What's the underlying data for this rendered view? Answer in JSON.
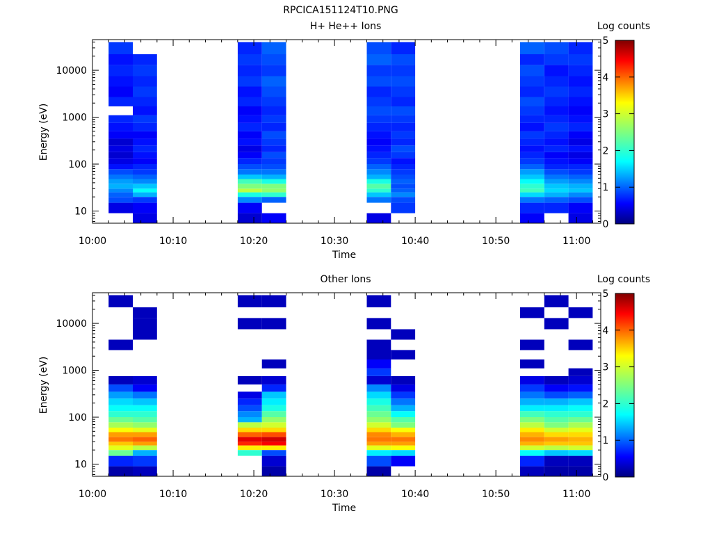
{
  "figure_title": "RPCICA151124T10.PNG",
  "colors": {
    "colormap": [
      "#00007f",
      "#0000ff",
      "#007fff",
      "#00ffff",
      "#7fff7f",
      "#ffff00",
      "#ff7f00",
      "#ff0000",
      "#7f0000"
    ],
    "background": "#ffffff",
    "missing": "#ffffff"
  },
  "chart_data": [
    {
      "type": "heatmap",
      "title": "H+ He++ Ions",
      "xlabel": "Time",
      "ylabel": "Energy (eV)",
      "y_scale": "log",
      "ylim": [
        5.5,
        45000
      ],
      "xlim": [
        "10:00",
        "11:03"
      ],
      "x_ticks": [
        "10:00",
        "10:10",
        "10:20",
        "10:30",
        "10:40",
        "10:50",
        "11:00"
      ],
      "y_ticks": [
        "10",
        "100",
        "1000",
        "10000"
      ],
      "colorbar": {
        "label": "Log counts",
        "range": [
          0,
          5
        ],
        "ticks": [
          "0",
          "1",
          "2",
          "3",
          "4",
          "5"
        ]
      },
      "energy_edges_ev": [
        5.5,
        9.0,
        15.0,
        20.0,
        25.0,
        30.0,
        38.0,
        48.0,
        60.0,
        78.0,
        100.0,
        135.0,
        180.0,
        250.0,
        350.0,
        500.0,
        750.0,
        1100.0,
        1700.0,
        2700.0,
        4500.0,
        7500.0,
        13000.0,
        22000.0,
        40000.0
      ],
      "columns": [
        {
          "start": "10:02",
          "end": "10:05",
          "values": [
            null,
            0.5,
            1.0,
            1.1,
            1.3,
            1.5,
            1.4,
            1.2,
            1.0,
            0.7,
            0.5,
            0.4,
            0.5,
            0.4,
            0.6,
            0.7,
            0.8,
            null,
            0.8,
            0.6,
            0.7,
            0.8,
            0.7,
            0.9
          ]
        },
        {
          "start": "10:05",
          "end": "10:08",
          "values": [
            0.5,
            0.6,
            0.9,
            1.5,
            1.9,
            1.6,
            1.3,
            1.1,
            0.9,
            0.8,
            0.6,
            0.7,
            0.8,
            0.7,
            0.6,
            0.8,
            0.9,
            0.7,
            0.8,
            0.9,
            0.8,
            0.9,
            0.8,
            null
          ]
        },
        {
          "start": "10:18",
          "end": "10:21",
          "values": [
            0.4,
            0.6,
            1.3,
            2.0,
            2.8,
            2.5,
            2.2,
            1.6,
            1.2,
            1.0,
            0.8,
            0.6,
            0.5,
            0.7,
            0.6,
            0.8,
            0.7,
            0.6,
            0.8,
            0.7,
            0.9,
            0.8,
            0.9,
            0.8
          ]
        },
        {
          "start": "10:21",
          "end": "10:24",
          "values": [
            0.6,
            null,
            1.1,
            2.1,
            2.6,
            2.5,
            2.0,
            1.5,
            1.2,
            1.0,
            0.9,
            1.0,
            0.8,
            0.9,
            1.0,
            0.8,
            0.9,
            0.8,
            0.9,
            1.0,
            1.1,
            0.9,
            1.0,
            1.1
          ]
        },
        {
          "start": "10:34",
          "end": "10:37",
          "values": [
            0.5,
            null,
            1.2,
            1.6,
            2.1,
            2.3,
            2.0,
            1.5,
            1.3,
            1.1,
            0.9,
            0.8,
            0.7,
            0.6,
            0.7,
            0.8,
            0.9,
            1.0,
            0.9,
            0.8,
            1.0,
            0.9,
            1.1,
            1.0
          ]
        },
        {
          "start": "10:37",
          "end": "10:40",
          "values": [
            null,
            0.9,
            1.0,
            1.3,
            1.1,
            1.0,
            1.1,
            1.0,
            0.9,
            0.8,
            0.7,
            0.9,
            1.0,
            0.8,
            0.9,
            0.8,
            0.9,
            1.0,
            0.8,
            0.9,
            1.0,
            0.9,
            1.0,
            0.8
          ]
        },
        {
          "start": "10:53",
          "end": "10:56",
          "values": [
            0.6,
            0.8,
            1.2,
            1.7,
            2.2,
            2.1,
            1.9,
            1.6,
            1.4,
            1.1,
            0.9,
            0.8,
            0.7,
            0.8,
            0.9,
            0.7,
            0.8,
            0.9,
            1.0,
            0.8,
            0.9,
            1.0,
            0.8,
            1.1
          ]
        },
        {
          "start": "10:56",
          "end": "10:59",
          "values": [
            null,
            0.8,
            1.1,
            1.5,
            1.7,
            1.6,
            1.4,
            1.2,
            1.0,
            0.8,
            0.7,
            0.6,
            0.8,
            0.7,
            0.8,
            0.9,
            0.8,
            0.7,
            0.8,
            0.9,
            0.8,
            0.7,
            0.9,
            1.0
          ]
        },
        {
          "start": "10:59",
          "end": "11:02",
          "values": [
            0.5,
            0.6,
            1.0,
            1.3,
            1.6,
            1.5,
            1.3,
            1.1,
            0.9,
            0.8,
            0.6,
            0.5,
            0.7,
            0.5,
            0.6,
            0.8,
            0.7,
            0.6,
            0.7,
            0.8,
            0.7,
            0.8,
            0.9,
            0.8
          ]
        }
      ]
    },
    {
      "type": "heatmap",
      "title": "Other Ions",
      "xlabel": "Time",
      "ylabel": "Energy (eV)",
      "y_scale": "log",
      "ylim": [
        5.5,
        45000
      ],
      "xlim": [
        "10:00",
        "11:03"
      ],
      "x_ticks": [
        "10:00",
        "10:10",
        "10:20",
        "10:30",
        "10:40",
        "10:50",
        "11:00"
      ],
      "y_ticks": [
        "10",
        "100",
        "1000",
        "10000"
      ],
      "colorbar": {
        "label": "Log counts",
        "range": [
          0,
          5
        ],
        "ticks": [
          "0",
          "1",
          "2",
          "3",
          "4",
          "5"
        ]
      },
      "energy_edges_ev": [
        5.5,
        9.0,
        15.0,
        20.0,
        25.0,
        30.0,
        38.0,
        48.0,
        60.0,
        78.0,
        100.0,
        135.0,
        180.0,
        250.0,
        350.0,
        500.0,
        750.0,
        1100.0,
        1700.0,
        2700.0,
        4500.0,
        7500.0,
        13000.0,
        22000.0,
        40000.0
      ],
      "columns": [
        {
          "start": "10:02",
          "end": "10:05",
          "values": [
            0.2,
            0.8,
            2.4,
            3.0,
            3.4,
            3.8,
            3.6,
            3.1,
            2.7,
            2.4,
            2.1,
            1.9,
            1.7,
            1.4,
            1.0,
            0.3,
            null,
            null,
            null,
            0.3,
            null,
            null,
            null,
            0.3
          ]
        },
        {
          "start": "10:05",
          "end": "10:08",
          "values": [
            0.3,
            0.9,
            1.5,
            2.8,
            3.6,
            3.9,
            3.6,
            3.0,
            2.6,
            2.3,
            2.1,
            1.9,
            1.6,
            1.2,
            0.6,
            0.4,
            null,
            null,
            null,
            null,
            0.3,
            0.3,
            0.3,
            null
          ]
        },
        {
          "start": "10:18",
          "end": "10:21",
          "values": [
            null,
            null,
            2.1,
            3.2,
            4.2,
            4.5,
            3.9,
            3.3,
            2.8,
            1.5,
            1.3,
            1.0,
            0.8,
            0.5,
            null,
            0.3,
            null,
            null,
            null,
            null,
            null,
            0.3,
            null,
            0.3
          ]
        },
        {
          "start": "10:21",
          "end": "10:24",
          "values": [
            0.2,
            0.4,
            1.0,
            3.2,
            4.4,
            4.6,
            4.0,
            3.3,
            2.9,
            2.6,
            2.3,
            2.0,
            1.8,
            1.6,
            0.8,
            0.4,
            null,
            0.3,
            null,
            null,
            null,
            0.3,
            null,
            0.3
          ]
        },
        {
          "start": "10:34",
          "end": "10:37",
          "values": [
            0.2,
            1.0,
            1.8,
            3.0,
            3.6,
            3.8,
            3.7,
            3.3,
            2.9,
            2.6,
            2.4,
            2.2,
            2.0,
            1.7,
            1.3,
            0.4,
            0.9,
            0.6,
            0.3,
            0.3,
            null,
            0.3,
            null,
            0.3
          ]
        },
        {
          "start": "10:37",
          "end": "10:40",
          "values": [
            null,
            0.6,
            1.7,
            3.1,
            3.6,
            3.8,
            3.5,
            3.1,
            2.5,
            2.3,
            1.9,
            1.5,
            1.2,
            0.9,
            0.5,
            0.3,
            null,
            null,
            0.3,
            null,
            0.3,
            null,
            null,
            null
          ]
        },
        {
          "start": "10:53",
          "end": "10:56",
          "values": [
            0.3,
            0.8,
            1.9,
            2.9,
            3.5,
            3.7,
            3.5,
            3.2,
            2.8,
            2.5,
            2.2,
            1.8,
            1.5,
            1.2,
            0.9,
            0.5,
            null,
            0.3,
            null,
            0.3,
            null,
            null,
            0.3,
            null
          ]
        },
        {
          "start": "10:56",
          "end": "10:59",
          "values": [
            0.2,
            0.3,
            1.6,
            2.8,
            3.4,
            3.6,
            3.3,
            2.9,
            2.5,
            2.3,
            2.1,
            1.8,
            1.5,
            1.0,
            0.6,
            0.3,
            null,
            null,
            null,
            null,
            null,
            0.3,
            null,
            0.3
          ]
        },
        {
          "start": "10:59",
          "end": "11:02",
          "values": [
            0.2,
            0.3,
            1.7,
            2.9,
            3.4,
            3.5,
            3.3,
            3.0,
            2.7,
            2.4,
            2.1,
            1.9,
            1.6,
            1.1,
            0.7,
            0.4,
            0.3,
            null,
            null,
            0.3,
            null,
            null,
            0.3,
            null
          ]
        }
      ]
    }
  ]
}
